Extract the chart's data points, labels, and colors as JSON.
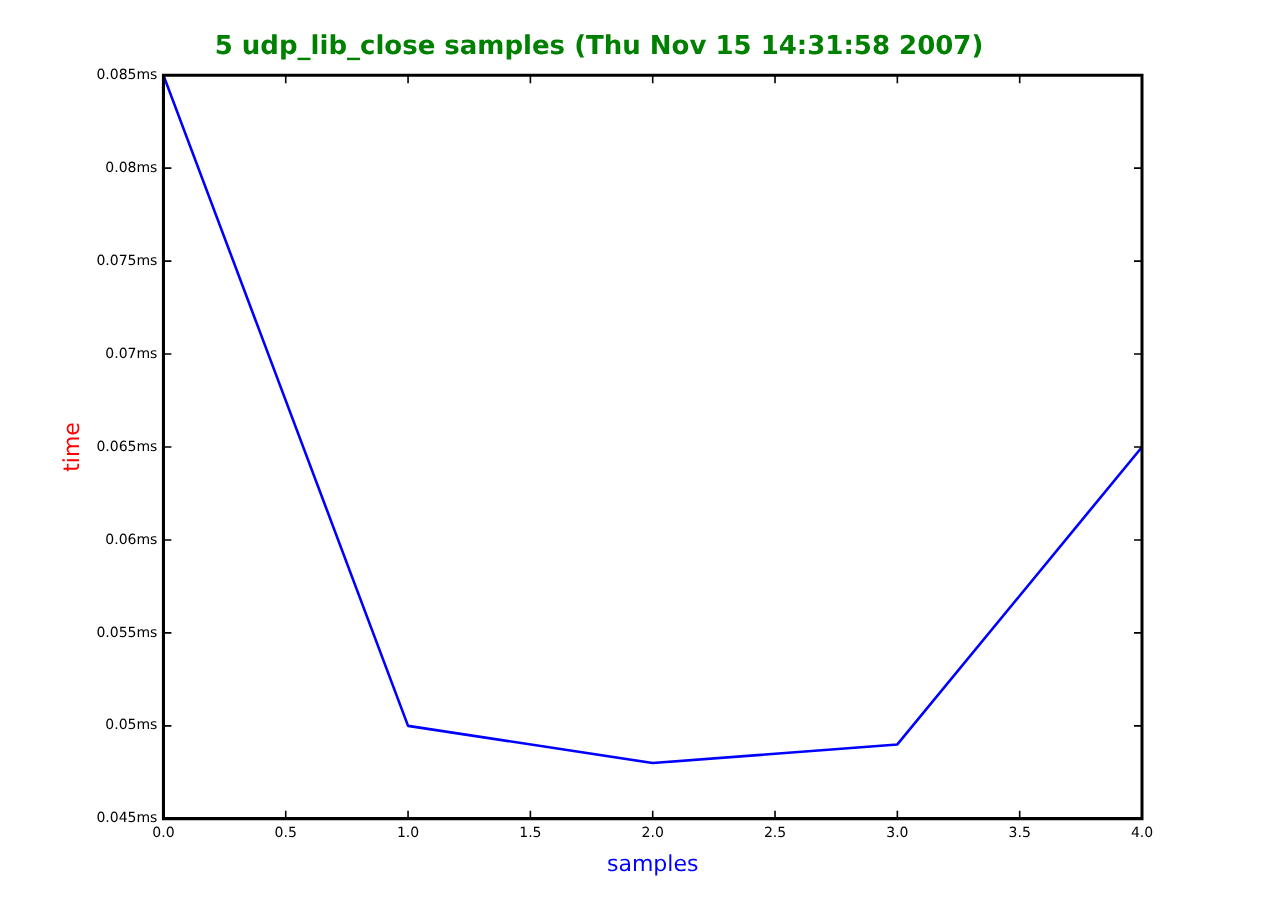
{
  "chart_data": {
    "type": "line",
    "title": "5 udp_lib_close samples (Thu Nov 15 14:31:58 2007)",
    "xlabel": "samples",
    "ylabel": "time",
    "x": [
      0,
      1,
      2,
      3,
      4
    ],
    "series": [
      {
        "color": "#0000ff",
        "values": [
          0.085,
          0.05,
          0.048,
          0.049,
          0.065
        ]
      }
    ],
    "xlim": [
      0,
      4
    ],
    "ylim": [
      0.045,
      0.085
    ],
    "xticks": [
      {
        "value": 0,
        "label": "0.0"
      },
      {
        "value": 0.5,
        "label": "0.5"
      },
      {
        "value": 1,
        "label": "1.0"
      },
      {
        "value": 1.5,
        "label": "1.5"
      },
      {
        "value": 2,
        "label": "2.0"
      },
      {
        "value": 2.5,
        "label": "2.5"
      },
      {
        "value": 3,
        "label": "3.0"
      },
      {
        "value": 3.5,
        "label": "3.5"
      },
      {
        "value": 4,
        "label": "4.0"
      }
    ],
    "yticks": [
      {
        "value": 0.045,
        "label": "0.045ms"
      },
      {
        "value": 0.05,
        "label": "0.05ms"
      },
      {
        "value": 0.055,
        "label": "0.055ms"
      },
      {
        "value": 0.06,
        "label": "0.06ms"
      },
      {
        "value": 0.065,
        "label": "0.065ms"
      },
      {
        "value": 0.07,
        "label": "0.07ms"
      },
      {
        "value": 0.075,
        "label": "0.075ms"
      },
      {
        "value": 0.08,
        "label": "0.08ms"
      },
      {
        "value": 0.085,
        "label": "0.085ms"
      }
    ],
    "grid": false,
    "legend": false,
    "marker": "none",
    "line_style": "solid"
  }
}
